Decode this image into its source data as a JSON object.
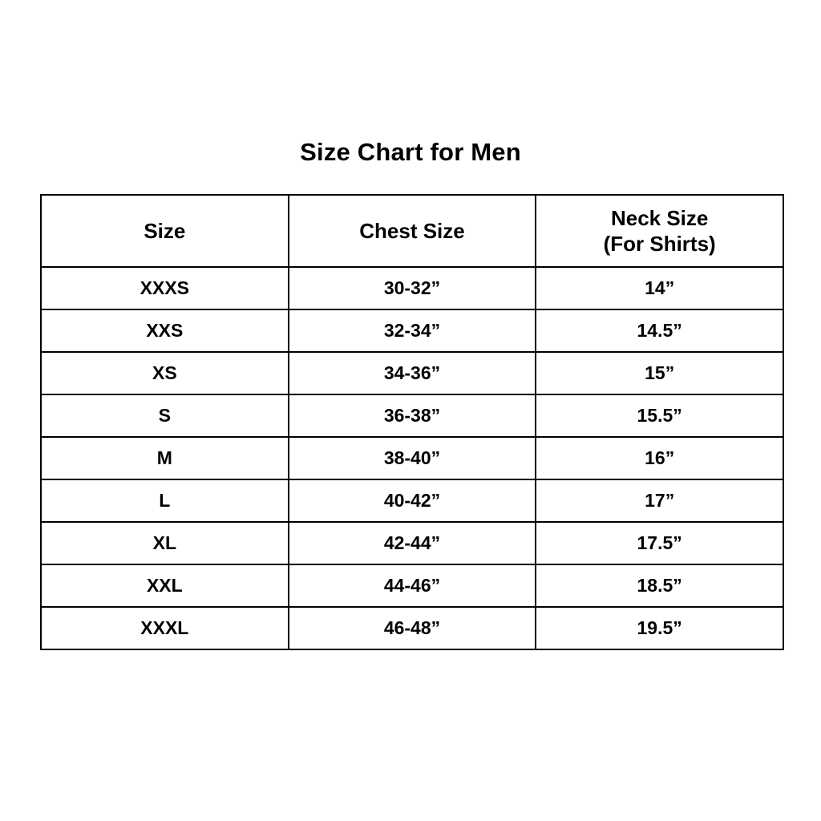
{
  "page": {
    "title": "Size Chart for Men"
  },
  "table": {
    "headers": {
      "size": "Size",
      "chest": "Chest Size",
      "neck_line1": "Neck Size",
      "neck_line2": "(For Shirts)"
    }
  },
  "chart_data": {
    "type": "table",
    "title": "Size Chart for Men",
    "columns": [
      "Size",
      "Chest Size",
      "Neck Size (For Shirts)"
    ],
    "rows": [
      {
        "size": "XXXS",
        "chest": "30-32”",
        "neck": "14”"
      },
      {
        "size": "XXS",
        "chest": "32-34”",
        "neck": "14.5”"
      },
      {
        "size": "XS",
        "chest": "34-36”",
        "neck": "15”"
      },
      {
        "size": "S",
        "chest": "36-38”",
        "neck": "15.5”"
      },
      {
        "size": "M",
        "chest": "38-40”",
        "neck": "16”"
      },
      {
        "size": "L",
        "chest": "40-42”",
        "neck": "17”"
      },
      {
        "size": "XL",
        "chest": "42-44”",
        "neck": "17.5”"
      },
      {
        "size": "XXL",
        "chest": "44-46”",
        "neck": "18.5”"
      },
      {
        "size": "XXXL",
        "chest": "46-48”",
        "neck": "19.5”"
      }
    ],
    "layout": {
      "grid": true,
      "border_color": "#000000",
      "text_color": "#000000",
      "background_color": "#ffffff",
      "columns_count": 3,
      "rows_count": 9
    }
  }
}
